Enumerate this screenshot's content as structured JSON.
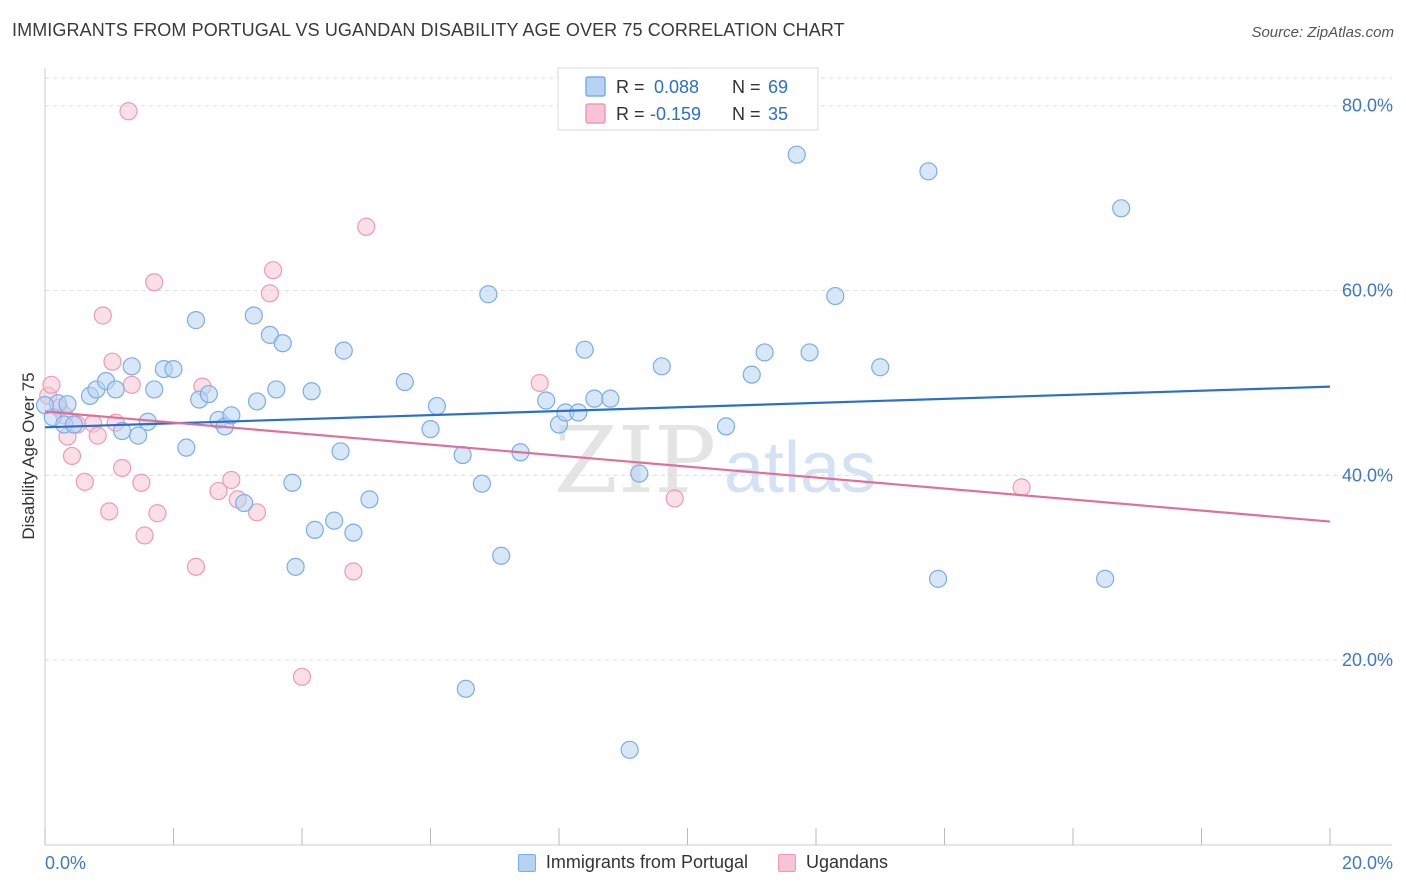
{
  "title": "IMMIGRANTS FROM PORTUGAL VS UGANDAN DISABILITY AGE OVER 75 CORRELATION CHART",
  "source": "Source: ZipAtlas.com",
  "watermark": {
    "zip": "ZIP",
    "atlas": "atlas"
  },
  "colors": {
    "blue": "#7aaee8",
    "blue_fill": "#b7d3f3",
    "blue_line": "#2a6fcb",
    "pink": "#ef9ab5",
    "pink_fill": "#f6c4d4",
    "pink_line": "#e0709a",
    "axis_text": "#3f78c8",
    "grid": "#dddddd"
  },
  "legend_top": {
    "rows": [
      {
        "r_label": "R =",
        "r_value": "0.088",
        "n_label": "N =",
        "n_value": "69"
      },
      {
        "r_label": "R =",
        "r_value": "-0.159",
        "n_label": "N =",
        "n_value": "35"
      }
    ]
  },
  "legend_bottom": [
    "Immigrants from Portugal",
    "Ugandans"
  ],
  "chart_data": {
    "type": "scatter",
    "title": "IMMIGRANTS FROM PORTUGAL VS UGANDAN DISABILITY AGE OVER 75 CORRELATION CHART",
    "xlabel": "",
    "ylabel": "Disability Age Over 75",
    "xlim": [
      0,
      20
    ],
    "ylim": [
      0,
      83
    ],
    "x_tick_labels": [
      "0.0%",
      "20.0%"
    ],
    "y_ticks": [
      20,
      40,
      60,
      80
    ],
    "y_tick_labels": [
      "20.0%",
      "40.0%",
      "60.0%",
      "80.0%"
    ],
    "grid": true,
    "legend_position": "top-center",
    "series": [
      {
        "name": "Immigrants from Portugal",
        "color": "#7aaee8",
        "trend": {
          "x": [
            0,
            20
          ],
          "y": [
            45.2,
            49.6
          ]
        },
        "points": [
          [
            0.12,
            46.3
          ],
          [
            0.2,
            47.8
          ],
          [
            0.3,
            45.5
          ],
          [
            0.45,
            45.5
          ],
          [
            0.7,
            48.6
          ],
          [
            0.8,
            49.3
          ],
          [
            0.95,
            50.2
          ],
          [
            1.1,
            49.3
          ],
          [
            1.2,
            44.8
          ],
          [
            1.35,
            51.8
          ],
          [
            1.45,
            44.3
          ],
          [
            1.6,
            45.8
          ],
          [
            1.7,
            49.3
          ],
          [
            1.85,
            51.5
          ],
          [
            2.0,
            51.5
          ],
          [
            2.2,
            43.0
          ],
          [
            2.35,
            56.8
          ],
          [
            2.4,
            48.2
          ],
          [
            2.55,
            48.8
          ],
          [
            2.7,
            46.0
          ],
          [
            2.8,
            45.3
          ],
          [
            2.9,
            46.5
          ],
          [
            3.1,
            37.0
          ],
          [
            3.25,
            57.3
          ],
          [
            3.3,
            48.0
          ],
          [
            3.5,
            55.2
          ],
          [
            3.6,
            49.3
          ],
          [
            3.7,
            54.3
          ],
          [
            3.85,
            39.2
          ],
          [
            3.9,
            30.1
          ],
          [
            4.15,
            49.1
          ],
          [
            4.2,
            34.1
          ],
          [
            4.5,
            35.1
          ],
          [
            4.6,
            42.6
          ],
          [
            4.65,
            53.5
          ],
          [
            4.8,
            33.8
          ],
          [
            5.05,
            37.4
          ],
          [
            5.6,
            50.1
          ],
          [
            6.0,
            45.0
          ],
          [
            6.1,
            47.5
          ],
          [
            6.5,
            42.2
          ],
          [
            6.55,
            16.9
          ],
          [
            6.8,
            39.1
          ],
          [
            6.9,
            59.6
          ],
          [
            7.1,
            31.3
          ],
          [
            7.4,
            42.5
          ],
          [
            7.8,
            48.1
          ],
          [
            8.0,
            45.5
          ],
          [
            8.1,
            46.8
          ],
          [
            8.3,
            46.8
          ],
          [
            8.4,
            53.6
          ],
          [
            8.55,
            48.3
          ],
          [
            8.8,
            48.3
          ],
          [
            9.1,
            10.3
          ],
          [
            9.25,
            40.2
          ],
          [
            9.6,
            51.8
          ],
          [
            10.6,
            45.3
          ],
          [
            11.0,
            50.9
          ],
          [
            11.2,
            53.3
          ],
          [
            11.7,
            74.7
          ],
          [
            11.9,
            53.3
          ],
          [
            12.3,
            59.4
          ],
          [
            13.0,
            51.7
          ],
          [
            13.75,
            72.9
          ],
          [
            13.9,
            28.8
          ],
          [
            16.5,
            28.8
          ],
          [
            16.75,
            68.9
          ],
          [
            0.0,
            47.6
          ],
          [
            0.35,
            47.7
          ]
        ]
      },
      {
        "name": "Ugandans",
        "color": "#ef9ab5",
        "trend": {
          "x": [
            0,
            20
          ],
          "y": [
            46.9,
            35.0
          ]
        },
        "points": [
          [
            0.05,
            48.6
          ],
          [
            0.1,
            49.8
          ],
          [
            0.22,
            47.3
          ],
          [
            0.35,
            44.2
          ],
          [
            0.42,
            42.1
          ],
          [
            0.5,
            45.5
          ],
          [
            0.62,
            39.3
          ],
          [
            0.75,
            45.6
          ],
          [
            0.82,
            44.3
          ],
          [
            0.9,
            57.3
          ],
          [
            1.0,
            36.1
          ],
          [
            1.05,
            52.3
          ],
          [
            1.1,
            45.7
          ],
          [
            1.2,
            40.8
          ],
          [
            1.35,
            49.8
          ],
          [
            1.5,
            39.2
          ],
          [
            1.55,
            33.5
          ],
          [
            1.7,
            60.9
          ],
          [
            1.75,
            35.9
          ],
          [
            2.35,
            30.1
          ],
          [
            2.45,
            49.6
          ],
          [
            2.7,
            38.3
          ],
          [
            2.9,
            39.5
          ],
          [
            3.0,
            37.4
          ],
          [
            3.3,
            36.0
          ],
          [
            3.5,
            59.7
          ],
          [
            3.55,
            62.2
          ],
          [
            4.0,
            18.2
          ],
          [
            4.8,
            29.6
          ],
          [
            5.0,
            66.9
          ],
          [
            7.7,
            50.0
          ],
          [
            9.8,
            37.5
          ],
          [
            15.2,
            38.7
          ],
          [
            1.3,
            79.4
          ],
          [
            0.3,
            46.5
          ]
        ]
      }
    ]
  }
}
